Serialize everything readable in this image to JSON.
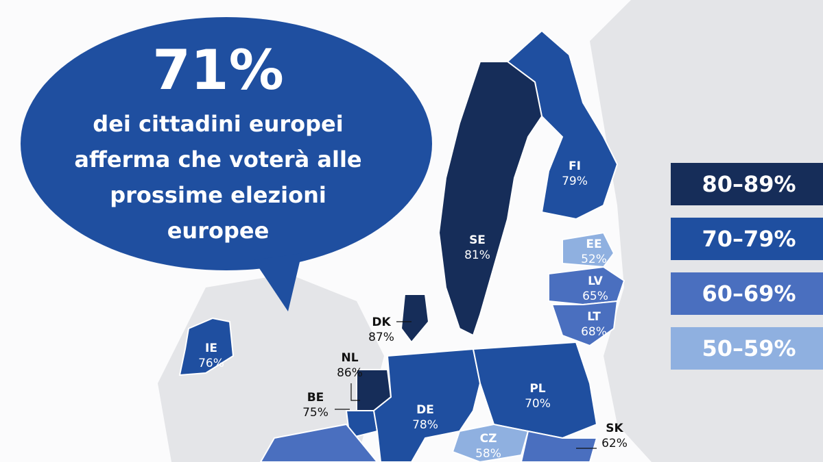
{
  "headline": {
    "value": "71%",
    "text": [
      "dei cittadini europei",
      "afferma che voterà alle",
      "prossime elezioni",
      "europee"
    ]
  },
  "legend": [
    "80–89%",
    "70–79%",
    "60–69%",
    "50–59%"
  ],
  "countries": [
    {
      "code": "FI",
      "value": "79%"
    },
    {
      "code": "SE",
      "value": "81%"
    },
    {
      "code": "EE",
      "value": "52%"
    },
    {
      "code": "LV",
      "value": "65%"
    },
    {
      "code": "LT",
      "value": "68%"
    },
    {
      "code": "DK",
      "value": "87%"
    },
    {
      "code": "IE",
      "value": "76%"
    },
    {
      "code": "NL",
      "value": "86%"
    },
    {
      "code": "BE",
      "value": "75%"
    },
    {
      "code": "PL",
      "value": "70%"
    },
    {
      "code": "DE",
      "value": "78%"
    },
    {
      "code": "CZ",
      "value": "58%"
    },
    {
      "code": "SK",
      "value": "62%"
    }
  ]
}
